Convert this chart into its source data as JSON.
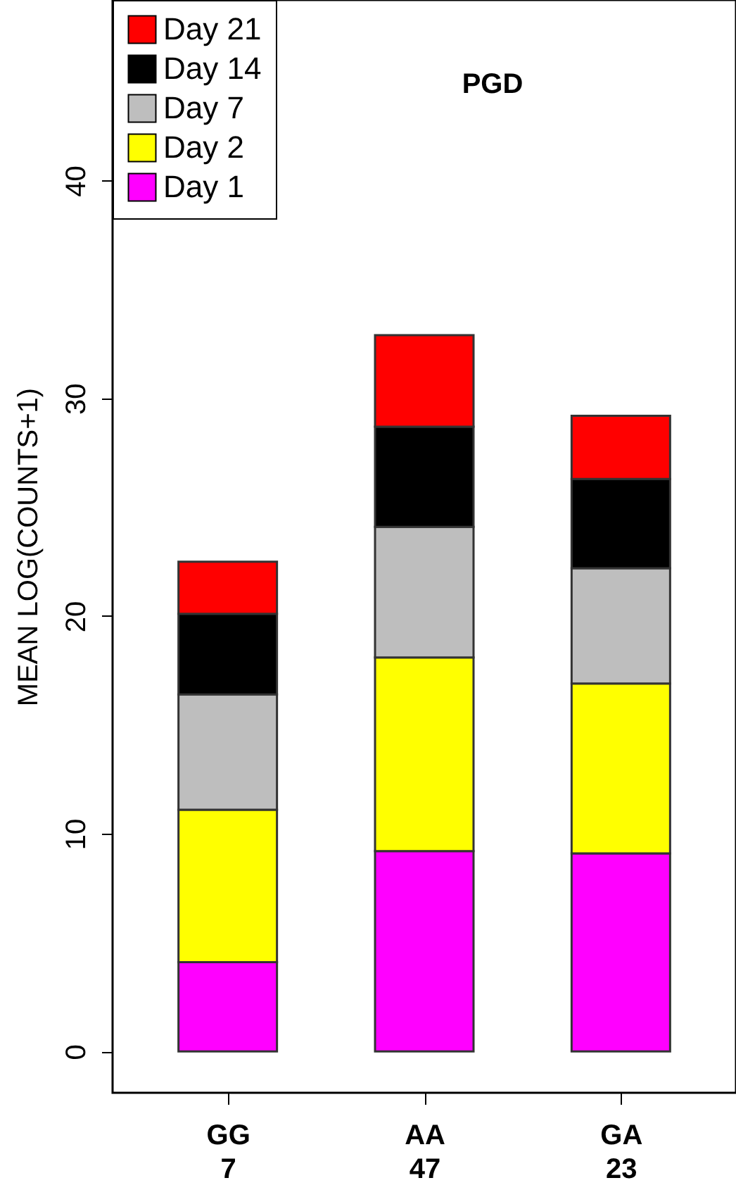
{
  "chart_data": {
    "type": "bar",
    "stacked": true,
    "title": "PGD",
    "ylabel": "MEAN LOG(COUNTS+1)",
    "categories": [
      "GG\n7",
      "AA\n47",
      "GA\n23"
    ],
    "series": [
      {
        "name": "Day 1",
        "color": "#ff00ff",
        "values": [
          4.1,
          9.2,
          9.1
        ]
      },
      {
        "name": "Day 2",
        "color": "#ffff00",
        "values": [
          7.0,
          8.9,
          7.8
        ]
      },
      {
        "name": "Day 7",
        "color": "#bebebe",
        "values": [
          5.3,
          6.0,
          5.3
        ]
      },
      {
        "name": "Day 14",
        "color": "#000000",
        "values": [
          3.7,
          4.6,
          4.1
        ]
      },
      {
        "name": "Day 21",
        "color": "#ff0000",
        "values": [
          2.4,
          4.2,
          2.9
        ]
      }
    ],
    "ylim": [
      -1.9,
      48.3
    ],
    "yticks": [
      0,
      10,
      20,
      30,
      40
    ],
    "grid": false,
    "legend": "top left"
  }
}
